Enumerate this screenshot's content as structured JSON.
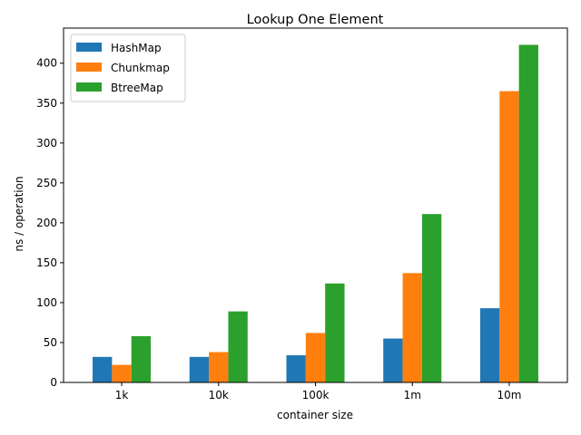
{
  "chart_data": {
    "type": "bar",
    "title": "Lookup One Element",
    "xlabel": "container size",
    "ylabel": "ns / operation",
    "categories": [
      "1k",
      "10k",
      "100k",
      "1m",
      "10m"
    ],
    "series": [
      {
        "name": "HashMap",
        "color": "#1f77b4",
        "values": [
          32,
          32,
          34,
          55,
          93
        ]
      },
      {
        "name": "Chunkmap",
        "color": "#ff7f0e",
        "values": [
          22,
          38,
          62,
          137,
          365
        ]
      },
      {
        "name": "BtreeMap",
        "color": "#2ca02c",
        "values": [
          58,
          89,
          124,
          211,
          423
        ]
      }
    ],
    "ylim": [
      0,
      444
    ],
    "yticks": [
      0,
      50,
      100,
      150,
      200,
      250,
      300,
      350,
      400
    ],
    "grid": false,
    "legend_position": "upper-left"
  }
}
